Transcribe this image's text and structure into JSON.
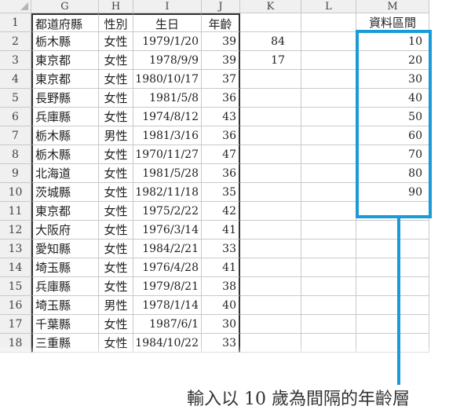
{
  "columns": [
    "G",
    "H",
    "I",
    "J",
    "K",
    "L",
    "M"
  ],
  "rows": [
    {
      "n": "1",
      "g": "都道府縣",
      "h": "性別",
      "i": "生日",
      "j": "年齡",
      "k": "",
      "m": "資料區間"
    },
    {
      "n": "2",
      "g": "栃木縣",
      "h": "女性",
      "i": "1979/1/20",
      "j": "39",
      "k": "84",
      "m": "10"
    },
    {
      "n": "3",
      "g": "東京都",
      "h": "女性",
      "i": "1978/9/9",
      "j": "39",
      "k": "17",
      "m": "20"
    },
    {
      "n": "4",
      "g": "東京都",
      "h": "女性",
      "i": "1980/10/17",
      "j": "37",
      "k": "",
      "m": "30"
    },
    {
      "n": "5",
      "g": "長野縣",
      "h": "女性",
      "i": "1981/5/8",
      "j": "36",
      "k": "",
      "m": "40"
    },
    {
      "n": "6",
      "g": "兵庫縣",
      "h": "女性",
      "i": "1974/8/12",
      "j": "43",
      "k": "",
      "m": "50"
    },
    {
      "n": "7",
      "g": "栃木縣",
      "h": "男性",
      "i": "1981/3/16",
      "j": "36",
      "k": "",
      "m": "60"
    },
    {
      "n": "8",
      "g": "栃木縣",
      "h": "女性",
      "i": "1970/11/27",
      "j": "47",
      "k": "",
      "m": "70"
    },
    {
      "n": "9",
      "g": "北海道",
      "h": "女性",
      "i": "1981/5/28",
      "j": "36",
      "k": "",
      "m": "80"
    },
    {
      "n": "10",
      "g": "茨城縣",
      "h": "女性",
      "i": "1982/11/18",
      "j": "35",
      "k": "",
      "m": "90"
    },
    {
      "n": "11",
      "g": "東京都",
      "h": "女性",
      "i": "1975/2/22",
      "j": "42",
      "k": "",
      "m": ""
    },
    {
      "n": "12",
      "g": "大阪府",
      "h": "女性",
      "i": "1976/3/14",
      "j": "41",
      "k": "",
      "m": ""
    },
    {
      "n": "13",
      "g": "愛知縣",
      "h": "女性",
      "i": "1984/2/21",
      "j": "33",
      "k": "",
      "m": ""
    },
    {
      "n": "14",
      "g": "埼玉縣",
      "h": "女性",
      "i": "1976/4/28",
      "j": "41",
      "k": "",
      "m": ""
    },
    {
      "n": "15",
      "g": "兵庫縣",
      "h": "女性",
      "i": "1979/8/21",
      "j": "38",
      "k": "",
      "m": ""
    },
    {
      "n": "16",
      "g": "埼玉縣",
      "h": "男性",
      "i": "1978/1/14",
      "j": "40",
      "k": "",
      "m": ""
    },
    {
      "n": "17",
      "g": "千葉縣",
      "h": "女性",
      "i": "1987/6/1",
      "j": "30",
      "k": "",
      "m": ""
    },
    {
      "n": "18",
      "g": "三重縣",
      "h": "女性",
      "i": "1984/10/22",
      "j": "33",
      "k": "",
      "m": ""
    }
  ],
  "annotation": {
    "caption": "輸入以 10 歲為間隔的年齡層",
    "highlight_color": "#1a9ad6"
  }
}
